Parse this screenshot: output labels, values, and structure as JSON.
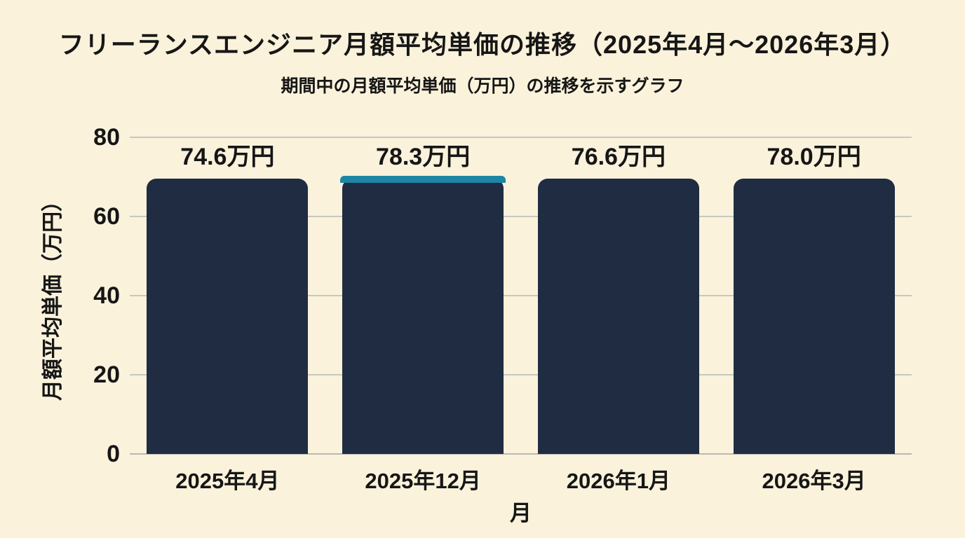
{
  "title": "フリーランスエンジニア月額平均単価の推移（2025年4月～2026年3月）",
  "subtitle": "期間中の月額平均単価（万円）の推移を示すグラフ",
  "chart_data": {
    "type": "bar",
    "title": "フリーランスエンジニア月額平均単価の推移（2025年4月～2026年3月）",
    "subtitle": "期間中の月額平均単価（万円）の推移を示すグラフ",
    "categories": [
      "2025年4月",
      "2025年12月",
      "2026年1月",
      "2026年3月"
    ],
    "values": [
      74.6,
      78.3,
      76.6,
      78.0
    ],
    "value_labels": [
      "74.6万円",
      "78.3万円",
      "76.6万円",
      "78.0万円"
    ],
    "xlabel": "月",
    "ylabel": "月額平均単価（万円）",
    "ylim": [
      0,
      80
    ],
    "yticks": [
      0,
      20,
      40,
      60,
      80
    ],
    "grid": true,
    "legend": "none",
    "highlight_index": 1,
    "colors": {
      "background": "#FAF2DB",
      "bar": "#1F2C42",
      "bar_highlight_cap": "#1C86A4",
      "gridline": "#C8C7C2",
      "axis_line": "#B9B8B3",
      "text": "#161616"
    }
  }
}
